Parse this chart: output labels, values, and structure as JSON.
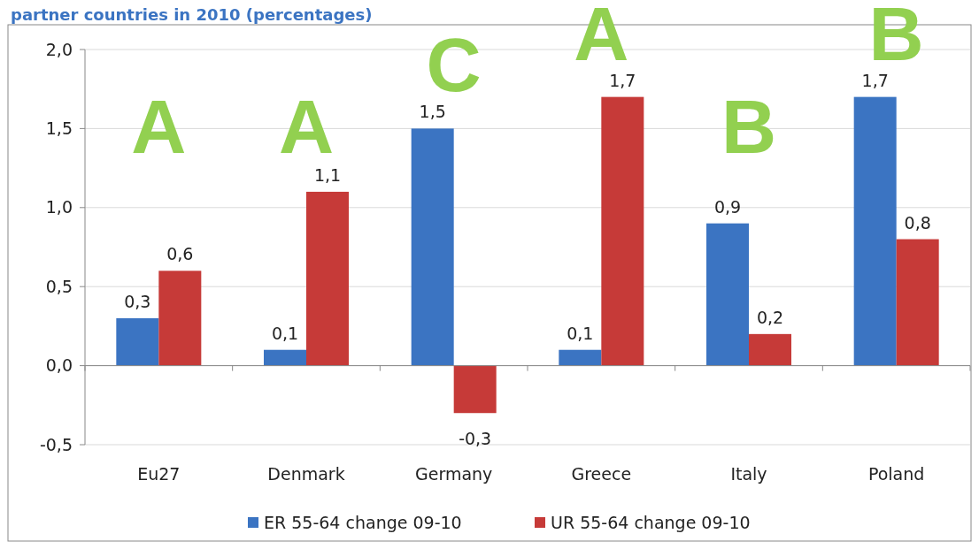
{
  "chart_data": {
    "type": "bar",
    "title": "partner countries in 2010 (percentages)",
    "categories": [
      "Eu27",
      "Denmark",
      "Germany",
      "Greece",
      "Italy",
      "Poland"
    ],
    "series": [
      {
        "name": "ER 55-64 change 09-10",
        "color": "#3b74c2",
        "values": [
          0.3,
          0.1,
          1.5,
          0.1,
          0.9,
          1.7
        ],
        "value_labels": [
          "0,3",
          "0,1",
          "1,5",
          "0,1",
          "0,9",
          "1,7"
        ]
      },
      {
        "name": "UR 55-64 change 09-10",
        "color": "#c63a38",
        "values": [
          0.6,
          1.1,
          -0.3,
          1.7,
          0.2,
          0.8
        ],
        "value_labels": [
          "0,6",
          "1,1",
          "-0,3",
          "1,7",
          "0,2",
          "0,8"
        ]
      }
    ],
    "ylim": [
      -0.5,
      2.0
    ],
    "yticks": [
      {
        "value": -0.5,
        "label": "-0,5"
      },
      {
        "value": 0,
        "label": "0,0"
      },
      {
        "value": 0.5,
        "label": "0,5"
      },
      {
        "value": 1,
        "label": "1,0"
      },
      {
        "value": 1.5,
        "label": "1,5"
      },
      {
        "value": 2,
        "label": "2,0"
      }
    ],
    "grid": "y",
    "legend": "bottom",
    "annotations": [
      "A",
      "A",
      "C",
      "A",
      "B",
      "B"
    ]
  }
}
